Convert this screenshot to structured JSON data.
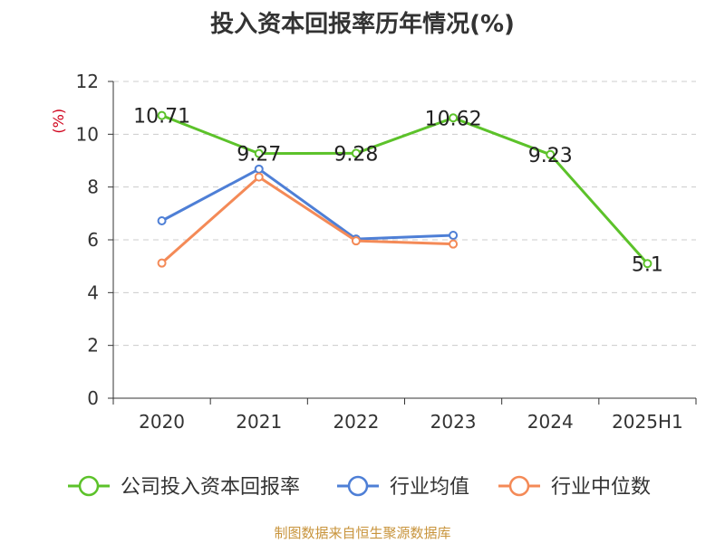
{
  "title": "投入资本回报率历年情况(%)",
  "source": "制图数据来自恒生聚源数据库",
  "chart_data": {
    "type": "line",
    "categories": [
      "2020",
      "2021",
      "2022",
      "2023",
      "2024",
      "2025H1"
    ],
    "ylim": [
      0,
      12
    ],
    "yticks": [
      0,
      2,
      4,
      6,
      8,
      10,
      12
    ],
    "ylabel": "(%)",
    "grid": true,
    "legend_position": "bottom",
    "series": [
      {
        "name": "公司投入资本回报率",
        "color": "#5cc22a",
        "values": [
          10.71,
          9.27,
          9.28,
          10.62,
          9.23,
          5.1
        ],
        "labels": [
          "10.71",
          "9.27",
          "9.28",
          "10.62",
          "9.23",
          "5.1"
        ]
      },
      {
        "name": "行业均值",
        "color": "#4e7fd6",
        "values": [
          6.72,
          8.68,
          6.03,
          6.17,
          null,
          null
        ]
      },
      {
        "name": "行业中位数",
        "color": "#f48a57",
        "values": [
          5.12,
          8.38,
          5.96,
          5.84,
          null,
          null
        ]
      }
    ]
  }
}
